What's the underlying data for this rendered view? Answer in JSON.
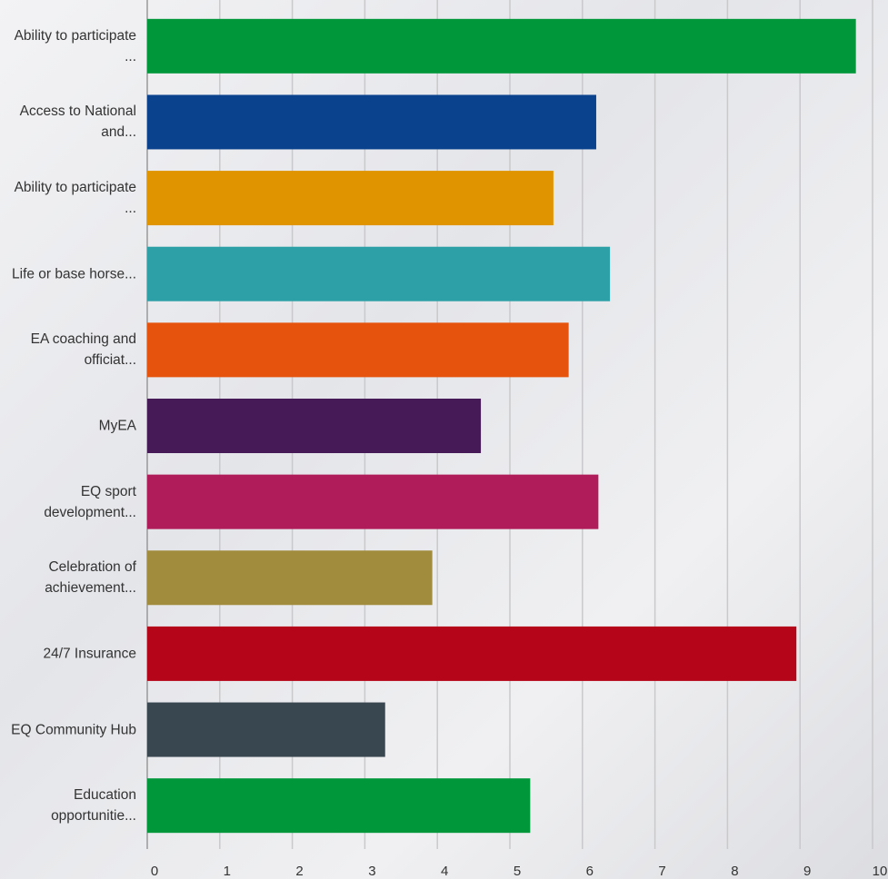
{
  "chart_data": {
    "type": "barh",
    "categories": [
      "Ability to participate ...",
      "Access to National and...",
      "Ability to participate ...",
      "Life or base horse...",
      "EA coaching and officiat...",
      "MyEA",
      "EQ sport development...",
      "Celebration of achievement...",
      "24/7 Insurance",
      "EQ Community Hub",
      "Education opportunitie..."
    ],
    "values": [
      9.77,
      6.19,
      5.6,
      6.38,
      5.81,
      4.6,
      6.22,
      3.93,
      8.95,
      3.28,
      5.28
    ],
    "colors": [
      "#00973a",
      "#0b428e",
      "#e09400",
      "#2da0a7",
      "#e5530c",
      "#451a57",
      "#b01b59",
      "#a08c3c",
      "#b50519",
      "#394750",
      "#00973a"
    ],
    "xlim": [
      0,
      10
    ],
    "xticks": [
      0,
      1,
      2,
      3,
      4,
      5,
      6,
      7,
      8,
      9,
      10
    ],
    "grid": true
  }
}
